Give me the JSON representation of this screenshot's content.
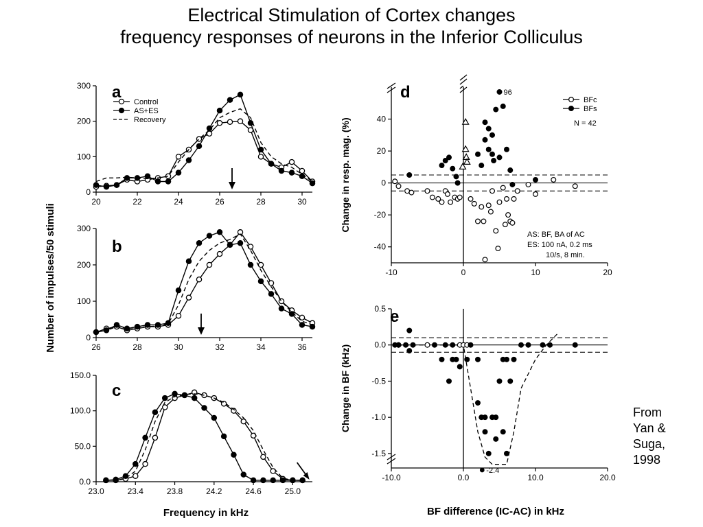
{
  "slide": {
    "title_line1": "Electrical Stimulation of Cortex changes",
    "title_line2": "frequency responses of neurons in the Inferior Colliculus"
  },
  "credit": {
    "line1": "From",
    "line2": "Yan &",
    "line3": "Suga,",
    "line4": "1998"
  },
  "shared": {
    "ylabel_left": "Number of impulses/50 stimuli",
    "xlabel_left": "Frequency in kHz",
    "xlabel_right": "BF difference (IC-AC) in kHz"
  },
  "chart_data": [
    {
      "id": "a",
      "type": "line",
      "panel_label": "a",
      "xlim": [
        20,
        30.5
      ],
      "ylim": [
        0,
        300
      ],
      "xticks": [
        20,
        22,
        24,
        26,
        28,
        30
      ],
      "yticks": [
        0,
        100,
        200,
        300
      ],
      "x": [
        20,
        20.5,
        21,
        21.5,
        22,
        22.5,
        23,
        23.5,
        24,
        24.5,
        25,
        25.5,
        26,
        26.5,
        27,
        27.5,
        28,
        28.5,
        29,
        29.5,
        30,
        30.5
      ],
      "series": [
        {
          "name": "Control",
          "marker": "open",
          "values": [
            15,
            18,
            20,
            35,
            30,
            35,
            40,
            45,
            100,
            120,
            150,
            165,
            195,
            198,
            200,
            175,
            100,
            80,
            70,
            85,
            60,
            30
          ]
        },
        {
          "name": "AS+ES",
          "marker": "filled",
          "values": [
            20,
            15,
            20,
            40,
            40,
            45,
            30,
            30,
            55,
            90,
            130,
            180,
            230,
            260,
            275,
            195,
            120,
            80,
            60,
            55,
            45,
            25
          ]
        },
        {
          "name": "Recovery",
          "marker": "dashed",
          "values": [
            30,
            40,
            40,
            42,
            40,
            38,
            40,
            45,
            85,
            120,
            150,
            175,
            210,
            225,
            235,
            210,
            140,
            100,
            80,
            70,
            50,
            30
          ]
        }
      ],
      "arrow_x": 26.6
    },
    {
      "id": "b",
      "type": "line",
      "panel_label": "b",
      "xlim": [
        26,
        36.5
      ],
      "ylim": [
        0,
        300
      ],
      "xticks": [
        26,
        28,
        30,
        32,
        34,
        36
      ],
      "yticks": [
        0,
        100,
        200,
        300
      ],
      "x": [
        26,
        26.5,
        27,
        27.5,
        28,
        28.5,
        29,
        29.5,
        30,
        30.5,
        31,
        31.5,
        32,
        32.5,
        33,
        33.5,
        34,
        34.5,
        35,
        35.5,
        36,
        36.5
      ],
      "series": [
        {
          "name": "Control",
          "marker": "open",
          "values": [
            15,
            25,
            30,
            20,
            25,
            30,
            30,
            35,
            60,
            110,
            160,
            200,
            230,
            255,
            290,
            250,
            200,
            150,
            100,
            75,
            55,
            40
          ]
        },
        {
          "name": "AS+ES",
          "marker": "filled",
          "values": [
            15,
            20,
            35,
            25,
            30,
            35,
            35,
            40,
            130,
            210,
            260,
            280,
            290,
            255,
            260,
            200,
            155,
            120,
            80,
            65,
            35,
            30
          ]
        },
        {
          "name": "Recovery",
          "marker": "dashed",
          "values": [
            15,
            20,
            30,
            25,
            28,
            30,
            32,
            38,
            90,
            160,
            210,
            240,
            260,
            270,
            285,
            240,
            185,
            140,
            100,
            70,
            45,
            35
          ]
        }
      ],
      "arrow_x": 31.1
    },
    {
      "id": "c",
      "type": "line",
      "panel_label": "c",
      "xlim": [
        23.0,
        25.2
      ],
      "ylim": [
        0,
        150
      ],
      "xticks": [
        23.0,
        23.4,
        23.8,
        24.2,
        24.6,
        25.0
      ],
      "yticks": [
        0,
        50,
        100,
        150
      ],
      "x": [
        23.1,
        23.2,
        23.3,
        23.4,
        23.5,
        23.6,
        23.7,
        23.8,
        23.9,
        24.0,
        24.1,
        24.2,
        24.3,
        24.4,
        24.5,
        24.6,
        24.7,
        24.8,
        24.9,
        25.0,
        25.1
      ],
      "series": [
        {
          "name": "Control",
          "marker": "open",
          "values": [
            2,
            2,
            4,
            8,
            25,
            62,
            105,
            118,
            122,
            126,
            122,
            118,
            110,
            100,
            85,
            65,
            35,
            15,
            4,
            2,
            2
          ]
        },
        {
          "name": "AS+ES",
          "marker": "filled",
          "values": [
            2,
            3,
            8,
            25,
            62,
            98,
            118,
            124,
            122,
            118,
            104,
            90,
            64,
            38,
            10,
            2,
            2,
            2,
            2,
            2,
            2
          ]
        },
        {
          "name": "Recovery",
          "marker": "dashed",
          "values": [
            2,
            2,
            5,
            15,
            45,
            85,
            112,
            120,
            123,
            124,
            122,
            118,
            112,
            102,
            90,
            72,
            45,
            20,
            5,
            2,
            2
          ]
        }
      ],
      "arrow_x": 25.1
    },
    {
      "id": "d",
      "type": "scatter",
      "panel_label": "d",
      "xlim": [
        -10,
        20
      ],
      "ylim": [
        -50,
        60
      ],
      "xticks": [
        -10,
        0,
        10,
        20
      ],
      "yticks": [
        -40,
        -20,
        0,
        20,
        40
      ],
      "ylabel": "Change in resp. mag. (%)",
      "series": [
        {
          "name": "BFc",
          "marker": "open",
          "points": [
            [
              -9.5,
              1
            ],
            [
              -9,
              -2
            ],
            [
              -7.8,
              -5
            ],
            [
              -7.2,
              -6
            ],
            [
              -5,
              -5
            ],
            [
              -4.3,
              -9
            ],
            [
              -3.5,
              -10
            ],
            [
              -3,
              -12
            ],
            [
              -2.5,
              -5
            ],
            [
              -2.2,
              -7
            ],
            [
              -1.8,
              -12
            ],
            [
              -1.2,
              -9
            ],
            [
              -0.8,
              -10
            ],
            [
              -0.5,
              -9
            ],
            [
              1,
              -10
            ],
            [
              1.5,
              -13
            ],
            [
              2,
              -24
            ],
            [
              2.5,
              -15
            ],
            [
              2.8,
              -24
            ],
            [
              3,
              -48
            ],
            [
              3.5,
              -14
            ],
            [
              3.8,
              -18
            ],
            [
              4,
              -5
            ],
            [
              4.5,
              -30
            ],
            [
              4.8,
              -41
            ],
            [
              5,
              -12
            ],
            [
              5.5,
              -3
            ],
            [
              5.8,
              -26
            ],
            [
              6,
              -10
            ],
            [
              6.2,
              -20
            ],
            [
              6.5,
              -24
            ],
            [
              6.8,
              -25
            ],
            [
              7,
              -10
            ],
            [
              7.5,
              -5
            ],
            [
              9,
              -1
            ],
            [
              10,
              -7
            ],
            [
              12.5,
              2
            ],
            [
              15.5,
              -2
            ]
          ]
        },
        {
          "name": "BFs",
          "marker": "filled",
          "points": [
            [
              -7.5,
              5
            ],
            [
              -3,
              11
            ],
            [
              -2.5,
              14
            ],
            [
              -2,
              16
            ],
            [
              -1.5,
              9
            ],
            [
              -1,
              4
            ],
            [
              -0.8,
              0
            ],
            [
              2,
              18
            ],
            [
              2.5,
              11
            ],
            [
              3,
              27
            ],
            [
              3,
              38
            ],
            [
              3.5,
              21
            ],
            [
              3.5,
              34
            ],
            [
              4,
              30
            ],
            [
              4,
              18
            ],
            [
              4.2,
              14
            ],
            [
              4.5,
              46
            ],
            [
              5,
              16
            ],
            [
              5,
              57
            ],
            [
              5.5,
              48
            ],
            [
              6,
              21
            ],
            [
              6.5,
              8
            ],
            [
              6.8,
              -1
            ],
            [
              10,
              2
            ]
          ]
        },
        {
          "name": "triangle",
          "marker": "triangle",
          "points": [
            [
              0.3,
              38
            ],
            [
              0.3,
              21
            ],
            [
              0.4,
              16
            ],
            [
              0.5,
              13
            ],
            [
              -0.1,
              10
            ]
          ]
        }
      ],
      "dashed_levels": [
        5,
        -5
      ],
      "annotation_top": "96",
      "legend": [
        "BFc",
        "BFs"
      ],
      "n_label": "N = 42",
      "note_lines": [
        "AS: BF, BA of AC",
        "ES: 100 nA, 0.2 ms",
        "10/s, 8 min."
      ]
    },
    {
      "id": "e",
      "type": "scatter",
      "panel_label": "e",
      "xlim": [
        -10,
        20
      ],
      "ylim": [
        -1.7,
        0.5
      ],
      "xticks": [
        -10,
        0,
        10,
        20
      ],
      "yticks": [
        0.5,
        0.0,
        -0.5,
        -1.0,
        -1.5
      ],
      "ylabel": "Change in BF (kHz)",
      "series": [
        {
          "name": "BFc",
          "marker": "open",
          "points": [
            [
              -9,
              0
            ],
            [
              -5,
              0
            ],
            [
              -0.5,
              0
            ],
            [
              0,
              0
            ],
            [
              0.5,
              0
            ]
          ]
        },
        {
          "name": "BFs",
          "marker": "filled",
          "points": [
            [
              -9.5,
              0
            ],
            [
              -9,
              0
            ],
            [
              -8,
              0
            ],
            [
              -7.5,
              -0.08
            ],
            [
              -7.5,
              0.2
            ],
            [
              -7,
              0
            ],
            [
              -4,
              0
            ],
            [
              -3,
              -0.2
            ],
            [
              -2.5,
              0
            ],
            [
              -2,
              -0.5
            ],
            [
              -1.5,
              0
            ],
            [
              -1.5,
              -0.2
            ],
            [
              -1,
              -0.2
            ],
            [
              -0.5,
              -0.3
            ],
            [
              0.5,
              -0.2
            ],
            [
              1,
              0
            ],
            [
              2,
              -0.2
            ],
            [
              2,
              -0.8
            ],
            [
              2.5,
              -1.0
            ],
            [
              3,
              -1.0
            ],
            [
              3,
              -1.2
            ],
            [
              3.5,
              -1.5
            ],
            [
              4,
              -1.0
            ],
            [
              4.5,
              -1.0
            ],
            [
              4.5,
              -1.3
            ],
            [
              5,
              -0.5
            ],
            [
              5.5,
              -0.2
            ],
            [
              5.5,
              -1.2
            ],
            [
              6,
              -1.5
            ],
            [
              6,
              -0.2
            ],
            [
              6.5,
              -0.5
            ],
            [
              7,
              -0.2
            ],
            [
              8,
              0
            ],
            [
              9,
              0
            ],
            [
              11,
              0
            ],
            [
              12,
              0
            ],
            [
              15.5,
              0
            ]
          ]
        }
      ],
      "envelope": [
        [
          -9,
          0.0
        ],
        [
          -5,
          0.0
        ],
        [
          -2,
          0.0
        ],
        [
          0,
          0.0
        ],
        [
          1,
          -0.6
        ],
        [
          2,
          -1.2
        ],
        [
          3,
          -1.55
        ],
        [
          4,
          -1.65
        ],
        [
          5,
          -1.65
        ],
        [
          6,
          -1.65
        ],
        [
          7,
          -1.2
        ],
        [
          8,
          -0.6
        ],
        [
          10,
          -0.2
        ],
        [
          11.5,
          0.0
        ],
        [
          13,
          0.15
        ]
      ],
      "dashed_levels": [
        0.1,
        -0.1
      ],
      "annotation_bottom": "-2.4"
    }
  ]
}
